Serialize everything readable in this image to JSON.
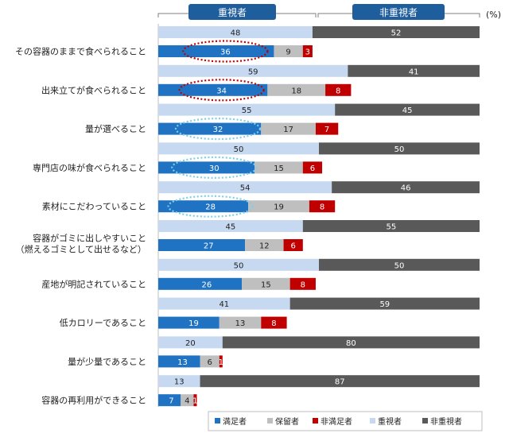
{
  "chart_data": {
    "type": "bar",
    "layout": "stacked-horizontal-paired",
    "unit": "(%)",
    "group_headers": [
      "重視者",
      "非重視者"
    ],
    "categories": [
      [
        "その容器のままで食べられること"
      ],
      [
        "出来立てが食べられること"
      ],
      [
        "量が選べること"
      ],
      [
        "専門店の味が食べられること"
      ],
      [
        "素材にこだわっていること"
      ],
      [
        "容器がゴミに出しやすいこと",
        "（燃えるゴミとして出せるなど）"
      ],
      [
        "産地が明記されていること"
      ],
      [
        "低カロリーであること"
      ],
      [
        "量が少量であること"
      ],
      [
        "容器の再利用ができること"
      ]
    ],
    "importance_series": [
      {
        "name": "重視者",
        "color": "#c6d9f1",
        "values": [
          48,
          59,
          55,
          50,
          54,
          45,
          50,
          41,
          20,
          13
        ]
      },
      {
        "name": "非重視者",
        "color": "#595959",
        "values": [
          52,
          41,
          45,
          50,
          46,
          55,
          50,
          59,
          80,
          87
        ]
      }
    ],
    "satisfaction_series": [
      {
        "name": "満足者",
        "color": "#1f73c2",
        "values": [
          36,
          34,
          32,
          30,
          28,
          27,
          26,
          19,
          13,
          7
        ]
      },
      {
        "name": "保留者",
        "color": "#bfbfbf",
        "values": [
          9,
          18,
          17,
          15,
          19,
          12,
          15,
          13,
          6,
          4
        ]
      },
      {
        "name": "非満足者",
        "color": "#c00000",
        "values": [
          3,
          8,
          7,
          6,
          8,
          6,
          8,
          8,
          1,
          1
        ]
      }
    ],
    "highlights": [
      {
        "row": 0,
        "style": "red-dotted-ellipse"
      },
      {
        "row": 1,
        "style": "red-dotted-ellipse"
      },
      {
        "row": 2,
        "style": "cyan-dotted-ellipse"
      },
      {
        "row": 3,
        "style": "cyan-dotted-ellipse"
      },
      {
        "row": 4,
        "style": "cyan-dotted-ellipse"
      }
    ],
    "legend": [
      "満足者",
      "保留者",
      "非満足者",
      "重視者",
      "非重視者"
    ],
    "legend_position": "bottom",
    "xlim": [
      0,
      100
    ],
    "colors": {
      "header_fill": "#1f5e9c",
      "bracket": "#7f7f7f",
      "axis": "#bfbfbf",
      "highlight_red": "#c00000",
      "highlight_cyan": "#7fd0e6"
    }
  }
}
